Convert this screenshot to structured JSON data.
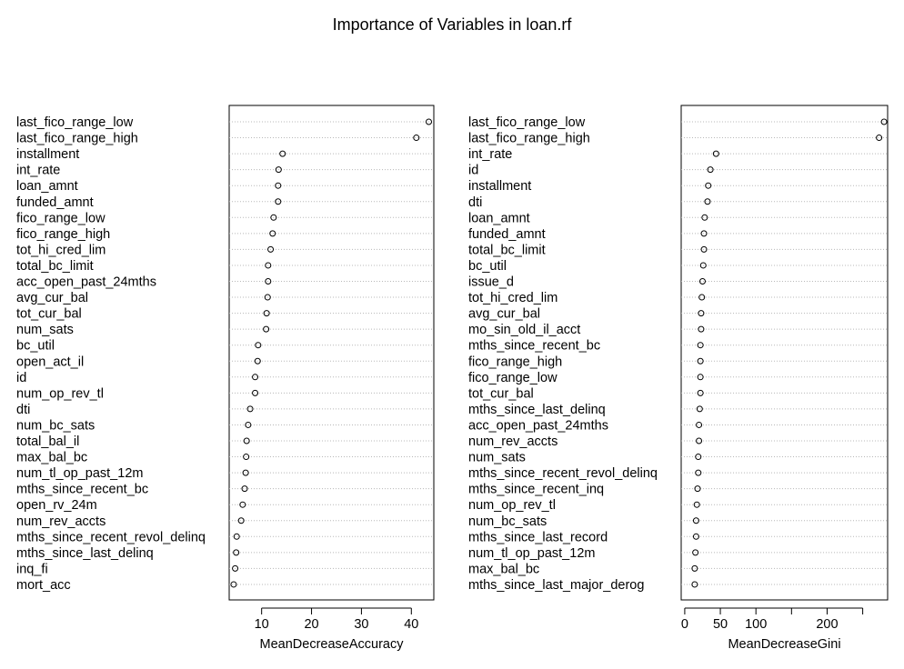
{
  "title": "Importance of Variables in loan.rf",
  "chart_data": [
    {
      "type": "scatter",
      "style": "dotchart",
      "xlabel": "MeanDecreaseAccuracy",
      "ylabel": "",
      "xlim": [
        3.5,
        44.5
      ],
      "xticks": [
        10,
        20,
        30,
        40
      ],
      "grid": "dotted horizontal",
      "categories": [
        "last_fico_range_low",
        "last_fico_range_high",
        "installment",
        "int_rate",
        "loan_amnt",
        "funded_amnt",
        "fico_range_low",
        "fico_range_high",
        "tot_hi_cred_lim",
        "total_bc_limit",
        "acc_open_past_24mths",
        "avg_cur_bal",
        "tot_cur_bal",
        "num_sats",
        "bc_util",
        "open_act_il",
        "id",
        "num_op_rev_tl",
        "dti",
        "num_bc_sats",
        "total_bal_il",
        "max_bal_bc",
        "num_tl_op_past_12m",
        "mths_since_recent_bc",
        "open_rv_24m",
        "num_rev_accts",
        "mths_since_recent_revol_delinq",
        "mths_since_last_delinq",
        "inq_fi",
        "mort_acc"
      ],
      "values": [
        43.5,
        41.0,
        14.2,
        13.4,
        13.3,
        13.3,
        12.4,
        12.2,
        11.8,
        11.3,
        11.3,
        11.2,
        11.0,
        10.9,
        9.3,
        9.2,
        8.7,
        8.7,
        7.7,
        7.3,
        7.0,
        6.9,
        6.8,
        6.6,
        6.2,
        5.9,
        5.0,
        4.9,
        4.7,
        4.4
      ]
    },
    {
      "type": "scatter",
      "style": "dotchart",
      "xlabel": "MeanDecreaseGini",
      "ylabel": "",
      "xlim": [
        -5,
        285
      ],
      "xticks": [
        0,
        50,
        100,
        150,
        200,
        250
      ],
      "xticklabels": [
        "0",
        "50",
        "100",
        "",
        "200",
        ""
      ],
      "grid": "dotted horizontal",
      "categories": [
        "last_fico_range_low",
        "last_fico_range_high",
        "int_rate",
        "id",
        "installment",
        "dti",
        "loan_amnt",
        "funded_amnt",
        "total_bc_limit",
        "bc_util",
        "issue_d",
        "tot_hi_cred_lim",
        "avg_cur_bal",
        "mo_sin_old_il_acct",
        "mths_since_recent_bc",
        "fico_range_high",
        "fico_range_low",
        "tot_cur_bal",
        "mths_since_last_delinq",
        "acc_open_past_24mths",
        "num_rev_accts",
        "num_sats",
        "mths_since_recent_revol_delinq",
        "mths_since_recent_inq",
        "num_op_rev_tl",
        "num_bc_sats",
        "mths_since_last_record",
        "num_tl_op_past_12m",
        "max_bal_bc",
        "mths_since_last_major_derog"
      ],
      "values": [
        280,
        273,
        44,
        36,
        33,
        32,
        28,
        27,
        27,
        26,
        25,
        24,
        23,
        23,
        22,
        22,
        22,
        22,
        21,
        20,
        20,
        19,
        19,
        18,
        17,
        16,
        16,
        15,
        14,
        14
      ]
    }
  ]
}
